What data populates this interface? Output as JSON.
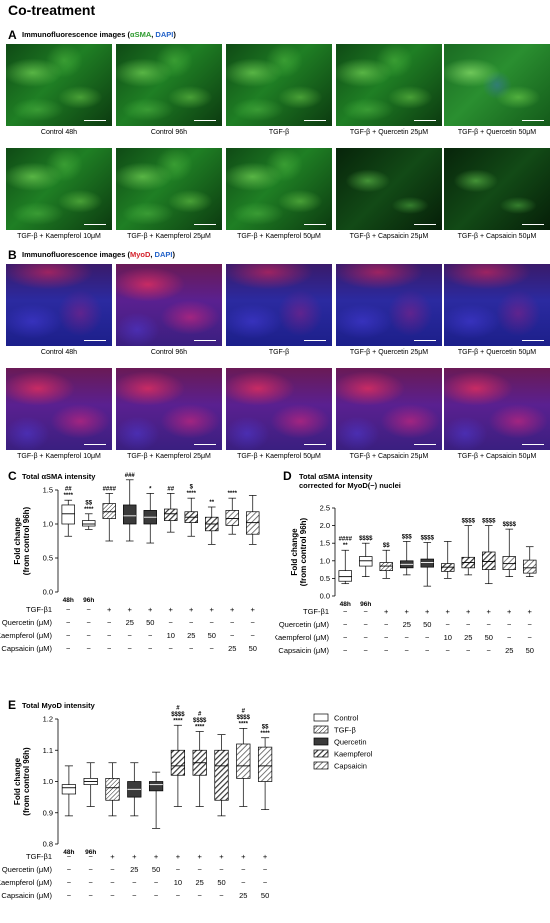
{
  "title": "Co-treatment",
  "panelA": {
    "letter": "A",
    "heading_prefix": "Immunofluorescence images (",
    "marker1": "αSMA",
    "sep": ", ",
    "marker2": "DAPI",
    "heading_suffix": ")",
    "captions": [
      "Control 48h",
      "Control 96h",
      "TGF-β",
      "TGF-β + Quercetin 25μM",
      "TGF-β + Quercetin 50μM",
      "TGF-β + Kaempferol 10μM",
      "TGF-β + Kaempferol 25μM",
      "TGF-β + Kaempferol 50μM",
      "TGF-β + Capsaicin 25μM",
      "TGF-β + Capsaicin 50μM"
    ]
  },
  "panelB": {
    "letter": "B",
    "heading_prefix": "Immunofluorescence images (",
    "marker1": "MyoD",
    "sep": ", ",
    "marker2": "DAPI",
    "heading_suffix": ")",
    "captions": [
      "Control 48h",
      "Control 96h",
      "TGF-β",
      "TGF-β + Quercetin 25μM",
      "TGF-β + Quercetin 50μM",
      "TGF-β + Kaempferol 10μM",
      "TGF-β + Kaempferol 25μM",
      "TGF-β + Kaempferol 50μM",
      "TGF-β + Capsaicin 25μM",
      "TGF-β + Capsaicin 50μM"
    ]
  },
  "table": {
    "rows": [
      "TGF-β1",
      "Quercetin (μM)",
      "Kaempferol (μM)",
      "Capsaicin (μM)"
    ],
    "cells": [
      [
        "−",
        "−",
        "+",
        "+",
        "+",
        "+",
        "+",
        "+",
        "+",
        "+"
      ],
      [
        "−",
        "−",
        "−",
        "25",
        "50",
        "−",
        "−",
        "−",
        "−",
        "−"
      ],
      [
        "−",
        "−",
        "−",
        "−",
        "−",
        "10",
        "25",
        "50",
        "−",
        "−"
      ],
      [
        "−",
        "−",
        "−",
        "−",
        "−",
        "−",
        "−",
        "−",
        "25",
        "50"
      ]
    ],
    "time_labels": [
      "48h",
      "96h"
    ]
  },
  "legend": [
    "Control",
    "TGF-β",
    "Quercetin",
    "Kaempferol",
    "Capsaicin"
  ],
  "chart_data": [
    {
      "type": "box",
      "letter": "C",
      "title": "Total αSMA intensity",
      "ylabel": "Fold change",
      "ylabel2": "(from control 96h)",
      "ylim": [
        0,
        1.5
      ],
      "yticks": [
        "0.0",
        "0.5",
        "1.0",
        "1.5"
      ],
      "groups": [
        "control",
        "control",
        "tgf",
        "quer",
        "quer",
        "kaem",
        "kaem",
        "kaem",
        "caps",
        "caps"
      ],
      "boxes": [
        {
          "min": 0.82,
          "q1": 1.0,
          "median": 1.15,
          "q3": 1.28,
          "max": 1.35
        },
        {
          "min": 0.92,
          "q1": 0.97,
          "median": 1.0,
          "q3": 1.05,
          "max": 1.15
        },
        {
          "min": 0.75,
          "q1": 1.08,
          "median": 1.18,
          "q3": 1.3,
          "max": 1.45
        },
        {
          "min": 0.75,
          "q1": 1.0,
          "median": 1.12,
          "q3": 1.28,
          "max": 1.65
        },
        {
          "min": 0.72,
          "q1": 1.0,
          "median": 1.1,
          "q3": 1.2,
          "max": 1.45
        },
        {
          "min": 0.88,
          "q1": 1.05,
          "median": 1.15,
          "q3": 1.22,
          "max": 1.45
        },
        {
          "min": 0.82,
          "q1": 1.02,
          "median": 1.1,
          "q3": 1.18,
          "max": 1.38
        },
        {
          "min": 0.7,
          "q1": 0.9,
          "median": 1.0,
          "q3": 1.1,
          "max": 1.25
        },
        {
          "min": 0.85,
          "q1": 0.98,
          "median": 1.08,
          "q3": 1.2,
          "max": 1.38
        },
        {
          "min": 0.7,
          "q1": 0.85,
          "median": 1.02,
          "q3": 1.18,
          "max": 1.42
        }
      ],
      "annotations": [
        [
          "##",
          "****"
        ],
        [
          "$$",
          "****"
        ],
        [
          "####"
        ],
        [
          "###"
        ],
        [
          "*"
        ],
        [
          "##"
        ],
        [
          "$",
          "****"
        ],
        [
          "**"
        ],
        [
          "****"
        ],
        []
      ]
    },
    {
      "type": "box",
      "letter": "D",
      "title": "Total αSMA intensity",
      "title2": "corrected for MyoD(−) nuclei",
      "ylabel": "Fold change",
      "ylabel2": "(from control 96h)",
      "ylim": [
        0,
        2.5
      ],
      "yticks": [
        "0.0",
        "0.5",
        "1.0",
        "1.5",
        "2.0",
        "2.5"
      ],
      "groups": [
        "control",
        "control",
        "tgf",
        "quer",
        "quer",
        "kaem",
        "kaem",
        "kaem",
        "caps",
        "caps"
      ],
      "boxes": [
        {
          "min": 0.35,
          "q1": 0.42,
          "median": 0.55,
          "q3": 0.72,
          "max": 1.3
        },
        {
          "min": 0.55,
          "q1": 0.85,
          "median": 1.0,
          "q3": 1.12,
          "max": 1.5
        },
        {
          "min": 0.5,
          "q1": 0.72,
          "median": 0.85,
          "q3": 0.95,
          "max": 1.3
        },
        {
          "min": 0.6,
          "q1": 0.8,
          "median": 0.9,
          "q3": 1.0,
          "max": 1.55
        },
        {
          "min": 0.28,
          "q1": 0.82,
          "median": 0.95,
          "q3": 1.05,
          "max": 1.52
        },
        {
          "min": 0.5,
          "q1": 0.7,
          "median": 0.82,
          "q3": 0.92,
          "max": 1.55
        },
        {
          "min": 0.6,
          "q1": 0.8,
          "median": 0.95,
          "q3": 1.1,
          "max": 2.0
        },
        {
          "min": 0.35,
          "q1": 0.75,
          "median": 0.98,
          "q3": 1.25,
          "max": 2.0
        },
        {
          "min": 0.55,
          "q1": 0.75,
          "median": 0.92,
          "q3": 1.12,
          "max": 1.9
        },
        {
          "min": 0.55,
          "q1": 0.65,
          "median": 0.8,
          "q3": 1.02,
          "max": 1.4
        }
      ],
      "annotations": [
        [
          "####",
          "**"
        ],
        [
          "$$$$"
        ],
        [
          "$$"
        ],
        [
          "$$$"
        ],
        [
          "$$$$"
        ],
        [],
        [
          "$$$$"
        ],
        [
          "$$$$"
        ],
        [
          "$$$$"
        ],
        []
      ]
    },
    {
      "type": "box",
      "letter": "E",
      "title": "Total MyoD intensity",
      "ylabel": "Fold change",
      "ylabel2": "(from control 96h)",
      "ylim": [
        0.8,
        1.2
      ],
      "yticks": [
        "0.8",
        "0.9",
        "1.0",
        "1.1",
        "1.2"
      ],
      "groups": [
        "control",
        "control",
        "tgf",
        "quer",
        "quer",
        "kaem",
        "kaem",
        "kaem",
        "caps",
        "caps"
      ],
      "boxes": [
        {
          "min": 0.89,
          "q1": 0.96,
          "median": 0.98,
          "q3": 0.99,
          "max": 1.05
        },
        {
          "min": 0.92,
          "q1": 0.99,
          "median": 1.0,
          "q3": 1.01,
          "max": 1.06
        },
        {
          "min": 0.89,
          "q1": 0.94,
          "median": 0.98,
          "q3": 1.01,
          "max": 1.06
        },
        {
          "min": 0.89,
          "q1": 0.95,
          "median": 0.975,
          "q3": 1.0,
          "max": 1.06
        },
        {
          "min": 0.85,
          "q1": 0.97,
          "median": 0.99,
          "q3": 1.0,
          "max": 1.03
        },
        {
          "min": 0.92,
          "q1": 1.02,
          "median": 1.05,
          "q3": 1.1,
          "max": 1.18
        },
        {
          "min": 0.92,
          "q1": 1.02,
          "median": 1.06,
          "q3": 1.1,
          "max": 1.16
        },
        {
          "min": 0.89,
          "q1": 0.94,
          "median": 1.05,
          "q3": 1.1,
          "max": 1.15
        },
        {
          "min": 0.92,
          "q1": 1.01,
          "median": 1.05,
          "q3": 1.12,
          "max": 1.17
        },
        {
          "min": 0.91,
          "q1": 1.0,
          "median": 1.05,
          "q3": 1.11,
          "max": 1.14
        }
      ],
      "annotations": [
        [],
        [],
        [],
        [],
        [],
        [
          "#",
          "$$$$",
          "****"
        ],
        [
          "#",
          "$$$$",
          "****"
        ],
        [],
        [
          "#",
          "$$$$",
          "****"
        ],
        [
          "$$",
          "****"
        ]
      ]
    }
  ],
  "colors": {
    "green": "#2e9b2e",
    "blue": "#2463c9",
    "red": "#d4202b"
  }
}
